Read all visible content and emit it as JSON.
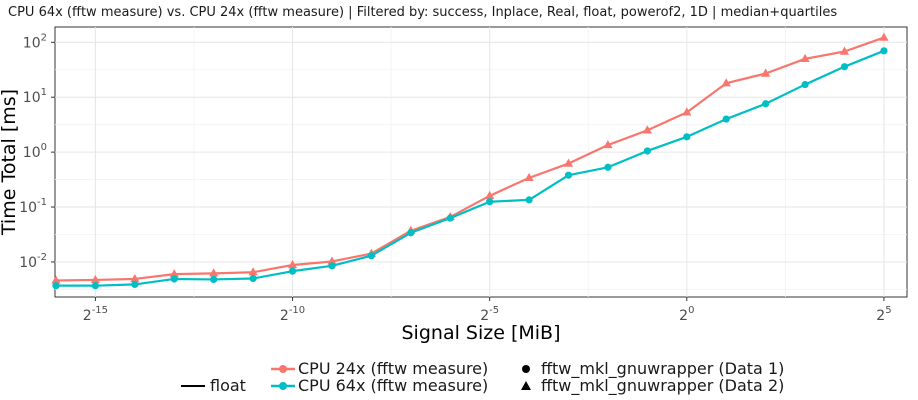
{
  "chart_data": {
    "type": "line",
    "title": "CPU 64x (fftw measure) vs. CPU 24x (fftw measure) | Filtered by: success, Inplace, Real, float, powerof2, 1D | median+quartiles",
    "xlabel": "Signal Size [MiB]",
    "ylabel": "Time Total [ms]",
    "x_scale": "log2",
    "y_scale": "log10",
    "xlim": [
      1.5e-05,
      48
    ],
    "ylim": [
      0.0023,
      190
    ],
    "x_ticks": [
      {
        "value": 3.0517578125e-05,
        "base": "2",
        "exp": "-15"
      },
      {
        "value": 0.0009765625,
        "base": "2",
        "exp": "-10"
      },
      {
        "value": 0.03125,
        "base": "2",
        "exp": "-5"
      },
      {
        "value": 1,
        "base": "2",
        "exp": "0"
      },
      {
        "value": 32,
        "base": "2",
        "exp": "5"
      }
    ],
    "y_ticks": [
      {
        "value": 0.01,
        "base": "10",
        "exp": "-2"
      },
      {
        "value": 0.1,
        "base": "10",
        "exp": "-1"
      },
      {
        "value": 1,
        "base": "10",
        "exp": "0"
      },
      {
        "value": 10,
        "base": "10",
        "exp": "1"
      },
      {
        "value": 100,
        "base": "10",
        "exp": "2"
      }
    ],
    "grid": true,
    "legend_position": "bottom",
    "x": [
      1.52587890625e-05,
      3.0517578125e-05,
      6.103515625e-05,
      0.0001220703125,
      0.000244140625,
      0.00048828125,
      0.0009765625,
      0.001953125,
      0.00390625,
      0.0078125,
      0.015625,
      0.03125,
      0.0625,
      0.125,
      0.25,
      0.5,
      1,
      2,
      4,
      8,
      16,
      32
    ],
    "series": [
      {
        "name": "CPU 24x (fftw measure)",
        "color": "#F8766D",
        "marker": "triangle",
        "values": [
          0.0046,
          0.0047,
          0.0049,
          0.006,
          0.0062,
          0.0065,
          0.0088,
          0.0102,
          0.0142,
          0.037,
          0.066,
          0.16,
          0.34,
          0.62,
          1.35,
          2.5,
          5.3,
          18,
          27,
          50,
          68,
          122
        ]
      },
      {
        "name": "CPU 64x (fftw measure)",
        "color": "#00BFC4",
        "marker": "circle",
        "values": [
          0.0037,
          0.0037,
          0.0039,
          0.0049,
          0.0048,
          0.005,
          0.0068,
          0.0085,
          0.013,
          0.034,
          0.063,
          0.125,
          0.135,
          0.38,
          0.53,
          1.05,
          1.9,
          4.0,
          7.6,
          17,
          36,
          70
        ]
      }
    ],
    "legend": {
      "linetype_label": "float",
      "color_labels": [
        "CPU 24x (fftw measure)",
        "CPU 64x (fftw measure)"
      ],
      "shape_labels": [
        "fftw_mkl_gnuwrapper (Data 1)",
        "fftw_mkl_gnuwrapper (Data 2)"
      ]
    }
  }
}
